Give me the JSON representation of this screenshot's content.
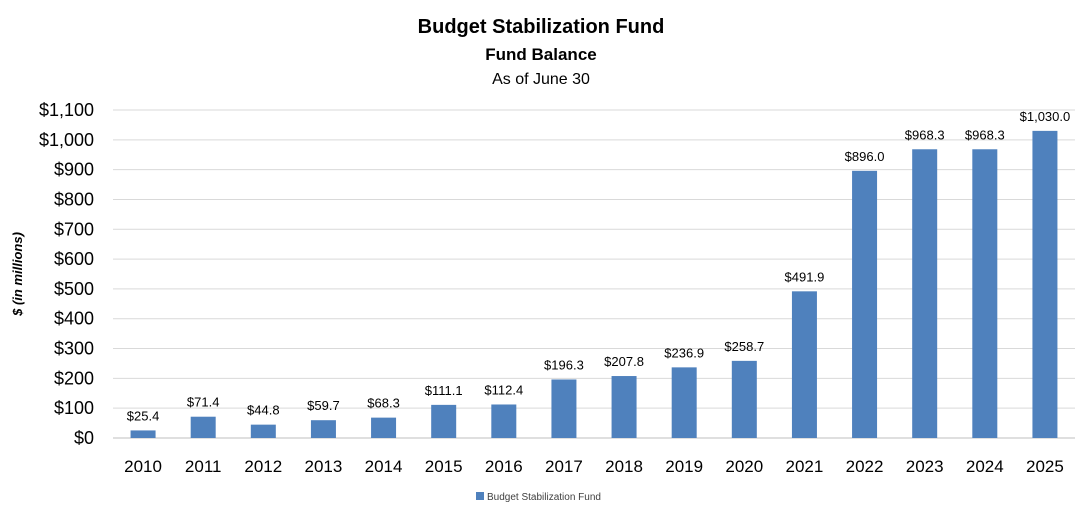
{
  "chart_data": {
    "type": "bar",
    "title": "Budget Stabilization Fund",
    "subtitle": "Fund Balance",
    "subtitle2": "As of June 30",
    "xlabel": "",
    "ylabel": "$ (in millions)",
    "ylim": [
      0,
      1100
    ],
    "yticks": [
      0,
      100,
      200,
      300,
      400,
      500,
      600,
      700,
      800,
      900,
      1000,
      1100
    ],
    "ytick_labels": [
      "$0",
      "$100",
      "$200",
      "$300",
      "$400",
      "$500",
      "$600",
      "$700",
      "$800",
      "$900",
      "$1,000",
      "$1,100"
    ],
    "grid": "horizontal",
    "legend_position": "bottom",
    "categories": [
      "2010",
      "2011",
      "2012",
      "2013",
      "2014",
      "2015",
      "2016",
      "2017",
      "2018",
      "2019",
      "2020",
      "2021",
      "2022",
      "2023",
      "2024",
      "2025"
    ],
    "series": [
      {
        "name": "Budget Stabilization Fund",
        "color": "#4f81bd",
        "values": [
          25.4,
          71.4,
          44.8,
          59.7,
          68.3,
          111.1,
          112.4,
          196.3,
          207.8,
          236.9,
          258.7,
          491.9,
          896.0,
          968.3,
          968.3,
          1030.0
        ],
        "labels": [
          "$25.4",
          "$71.4",
          "$44.8",
          "$59.7",
          "$68.3",
          "$111.1",
          "$112.4",
          "$196.3",
          "$207.8",
          "$236.9",
          "$258.7",
          "$491.9",
          "$896.0",
          "$968.3",
          "$968.3",
          "$1,030.0"
        ]
      }
    ]
  }
}
